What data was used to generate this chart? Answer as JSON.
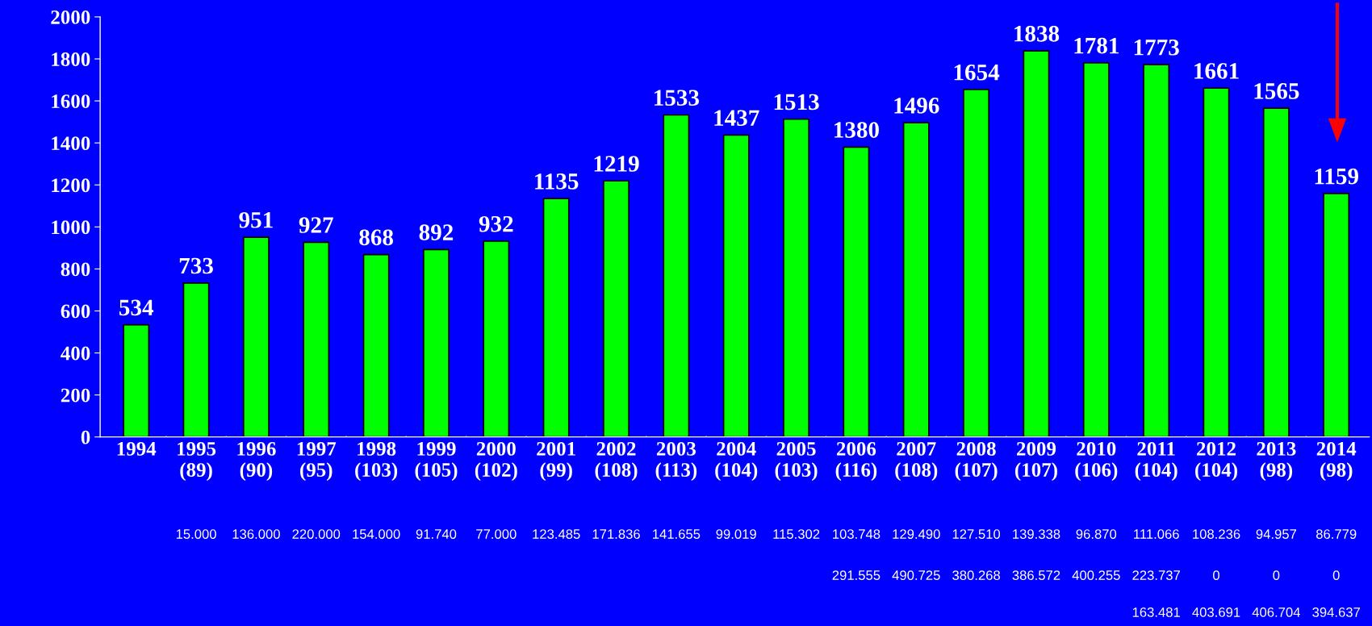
{
  "chart_data": {
    "type": "bar",
    "categories": [
      "1994",
      "1995\n(89)",
      "1996\n(90)",
      "1997\n(95)",
      "1998\n(103)",
      "1999\n(105)",
      "2000\n(102)",
      "2001\n(99)",
      "2002\n(108)",
      "2003\n(113)",
      "2004\n(104)",
      "2005\n(103)",
      "2006\n(116)",
      "2007\n(108)",
      "2008\n(107)",
      "2009\n(107)",
      "2010\n(106)",
      "2011\n(104)",
      "2012\n(104)",
      "2013\n(98)",
      "2014\n(98)"
    ],
    "values": [
      534,
      733,
      951,
      927,
      868,
      892,
      932,
      1135,
      1219,
      1533,
      1437,
      1513,
      1380,
      1496,
      1654,
      1838,
      1781,
      1773,
      1661,
      1565,
      1159
    ],
    "color": "#00ff00",
    "ylim": [
      0,
      2000
    ],
    "yticks": [
      0,
      200,
      400,
      600,
      800,
      1000,
      1200,
      1400,
      1600,
      1800,
      2000
    ],
    "data_labels": true,
    "grid": false,
    "legend": false,
    "annotations": [
      "15.000 136.000 220.000 154.000 91.740 77.000 123.485 171.836 141.655 99.019 115.302 103.748 129.490 127.510 139.338 96.870 111.066 108.236 94.957 86.779",
      "291.555 490.725 380.268 386.572 400.255 223.737 0 0 0",
      "163.481 403.691 406.704 394.637"
    ]
  }
}
